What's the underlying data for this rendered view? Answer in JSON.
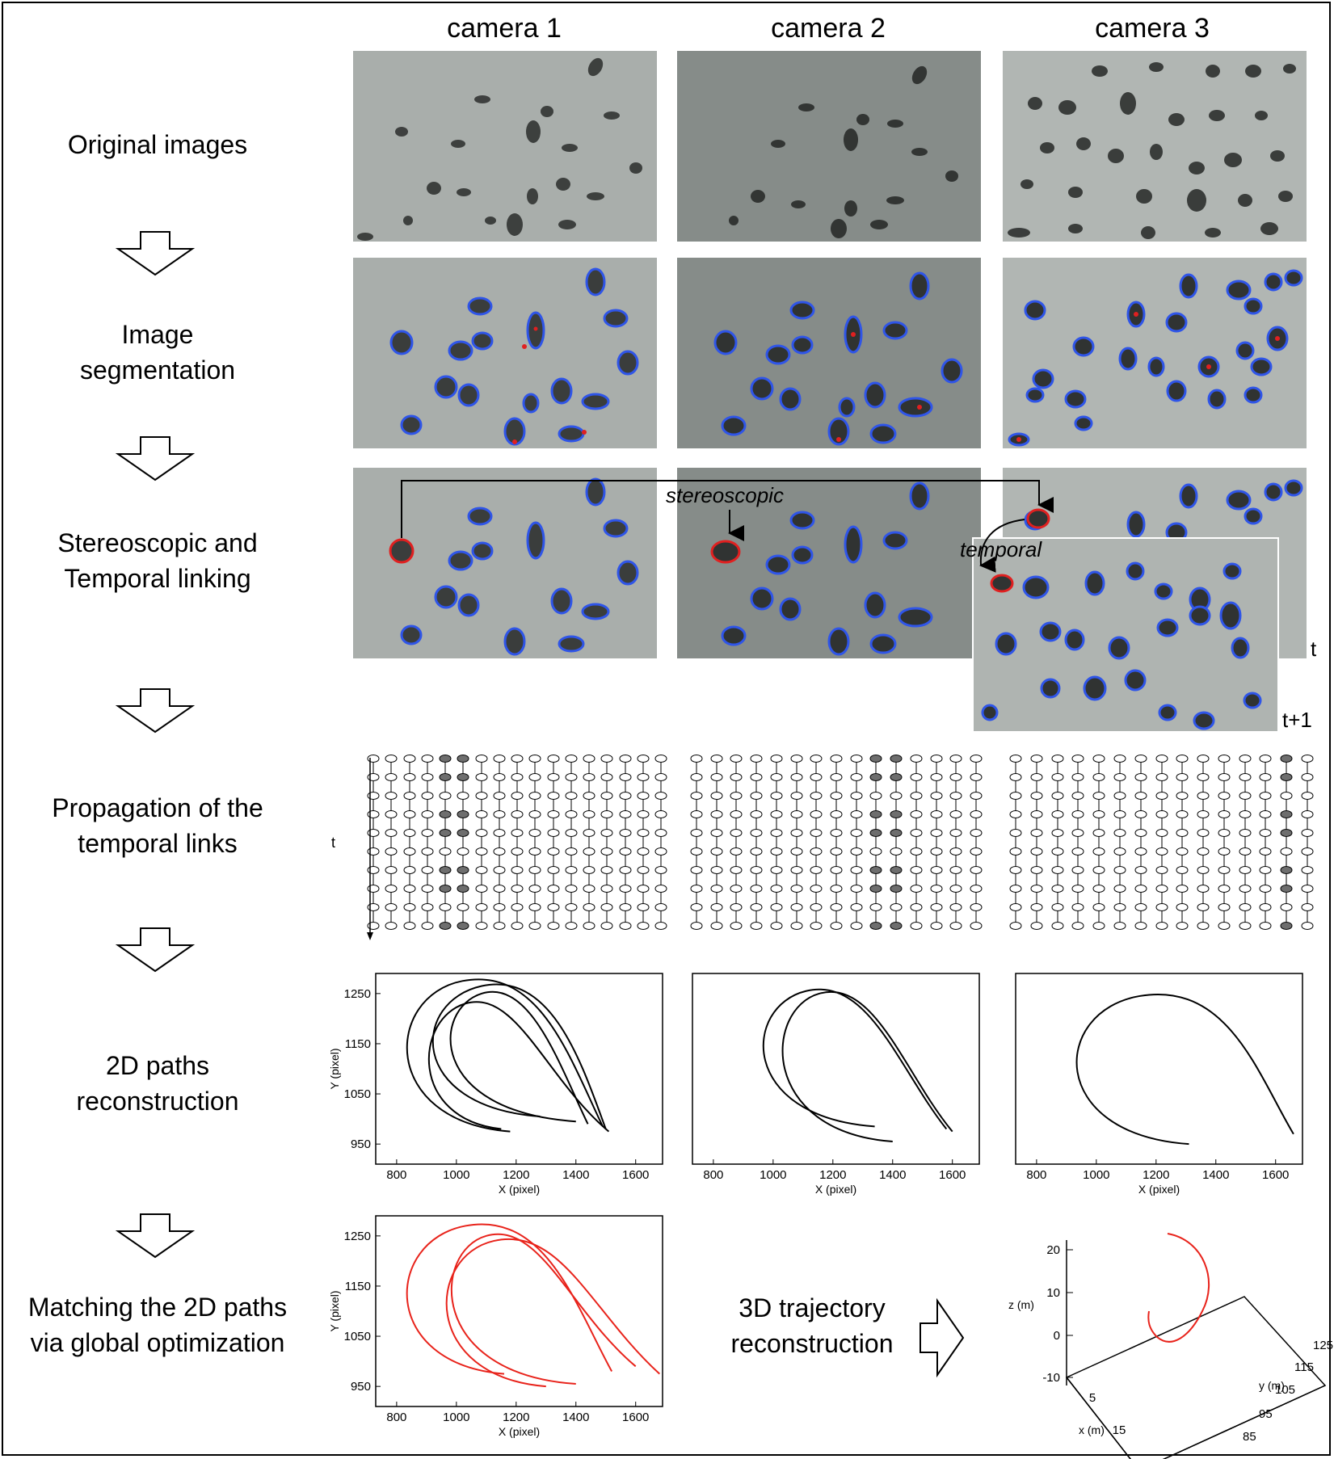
{
  "camera_headers": [
    "camera 1",
    "camera 2",
    "camera 3"
  ],
  "row_labels": {
    "original": [
      "Original images"
    ],
    "segmentation": [
      "Image",
      "segmentation"
    ],
    "linking": [
      "Stereoscopic and",
      "Temporal linking"
    ],
    "propagation": [
      "Propagation of the",
      "temporal links"
    ],
    "paths2d": [
      "2D paths",
      "reconstruction"
    ],
    "matching": [
      "Matching the 2D paths",
      "via global optimization"
    ]
  },
  "annotations": {
    "stereoscopic": "stereoscopic",
    "temporal": "temporal",
    "t": "t",
    "t_plus_1": "t+1",
    "time_axis": "t"
  },
  "trajectory_3d_label": [
    "3D trajectory",
    "reconstruction"
  ],
  "colors": {
    "background_cam1": "#a9aeab",
    "background_cam2": "#868c89",
    "background_cam3": "#b1b6b3",
    "segmentation_outline": "#2f55e8",
    "selected_outline": "#e02020",
    "matched_path": "#e8231b",
    "node_dark": "#6e6e6e"
  },
  "chart_data": [
    {
      "type": "line",
      "panel": "camera 1 - 2D paths",
      "xlabel": "X (pixel)",
      "ylabel": "Y (pixel)",
      "xticks": [
        800,
        1000,
        1200,
        1400,
        1600
      ],
      "yticks": [
        950,
        1050,
        1150,
        1250
      ],
      "xlim": [
        730,
        1690
      ],
      "ylim": [
        910,
        1290
      ],
      "series_count": 4
    },
    {
      "type": "line",
      "panel": "camera 2 - 2D paths",
      "xlabel": "X (pixel)",
      "ylabel": "",
      "xticks": [
        800,
        1000,
        1200,
        1400,
        1600
      ],
      "yticks": [],
      "xlim": [
        730,
        1690
      ],
      "ylim": [
        910,
        1290
      ],
      "series_count": 2
    },
    {
      "type": "line",
      "panel": "camera 3 - 2D paths",
      "xlabel": "X (pixel)",
      "ylabel": "",
      "xticks": [
        800,
        1000,
        1200,
        1400,
        1600
      ],
      "yticks": [],
      "xlim": [
        730,
        1690
      ],
      "ylim": [
        910,
        1290
      ],
      "series_count": 1
    },
    {
      "type": "line",
      "panel": "matched 2D paths",
      "xlabel": "X (pixel)",
      "ylabel": "Y (pixel)",
      "xticks": [
        800,
        1000,
        1200,
        1400,
        1600
      ],
      "yticks": [
        950,
        1050,
        1150,
        1250
      ],
      "xlim": [
        730,
        1690
      ],
      "ylim": [
        910,
        1290
      ],
      "series_count": 3
    },
    {
      "type": "line",
      "panel": "3D trajectory",
      "xlabel": "x (m)",
      "ylabel": "y (m)",
      "zlabel": "z (m)",
      "xticks": [
        5,
        15
      ],
      "yticks": [
        85,
        95,
        105,
        115,
        125
      ],
      "zticks": [
        -10,
        0,
        10,
        20
      ]
    }
  ]
}
